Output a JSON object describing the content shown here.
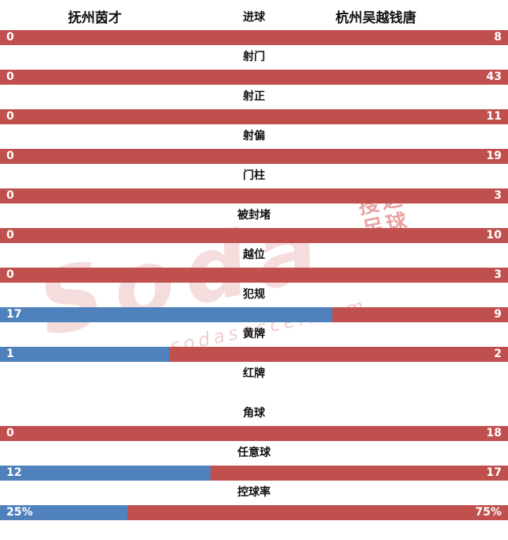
{
  "header": {
    "home_team": "抚州茵才",
    "away_team": "杭州吴越钱唐"
  },
  "colors": {
    "home_bar": "#4f81bd",
    "away_bar": "#c0504d",
    "bar_text": "#ffffff",
    "label_text": "#111111",
    "watermark": "#de7a7a"
  },
  "watermark": {
    "logo_text": "Soda",
    "brand_cn_line1": "搜达",
    "brand_cn_line2": "足球",
    "url": "sodasoccer.com"
  },
  "chart_data": {
    "type": "bar",
    "orientation": "horizontal-split",
    "legend_position": "top",
    "teams": [
      "抚州茵才",
      "杭州吴越钱唐"
    ],
    "rows": [
      {
        "label": "进球",
        "home": "0",
        "away": "8",
        "home_num": 0,
        "away_num": 8,
        "show_bar": true
      },
      {
        "label": "射门",
        "home": "0",
        "away": "43",
        "home_num": 0,
        "away_num": 43,
        "show_bar": true
      },
      {
        "label": "射正",
        "home": "0",
        "away": "11",
        "home_num": 0,
        "away_num": 11,
        "show_bar": true
      },
      {
        "label": "射偏",
        "home": "0",
        "away": "19",
        "home_num": 0,
        "away_num": 19,
        "show_bar": true
      },
      {
        "label": "门柱",
        "home": "0",
        "away": "3",
        "home_num": 0,
        "away_num": 3,
        "show_bar": true
      },
      {
        "label": "被封堵",
        "home": "0",
        "away": "10",
        "home_num": 0,
        "away_num": 10,
        "show_bar": true
      },
      {
        "label": "越位",
        "home": "0",
        "away": "3",
        "home_num": 0,
        "away_num": 3,
        "show_bar": true
      },
      {
        "label": "犯规",
        "home": "17",
        "away": "9",
        "home_num": 17,
        "away_num": 9,
        "show_bar": true
      },
      {
        "label": "黄牌",
        "home": "1",
        "away": "2",
        "home_num": 1,
        "away_num": 2,
        "show_bar": true
      },
      {
        "label": "红牌",
        "home": "",
        "away": "",
        "home_num": 0,
        "away_num": 0,
        "show_bar": false
      },
      {
        "label": "角球",
        "home": "0",
        "away": "18",
        "home_num": 0,
        "away_num": 18,
        "show_bar": true
      },
      {
        "label": "任意球",
        "home": "12",
        "away": "17",
        "home_num": 12,
        "away_num": 17,
        "show_bar": true
      },
      {
        "label": "控球率",
        "home": "25%",
        "away": "75%",
        "home_num": 25,
        "away_num": 75,
        "show_bar": true
      }
    ]
  }
}
